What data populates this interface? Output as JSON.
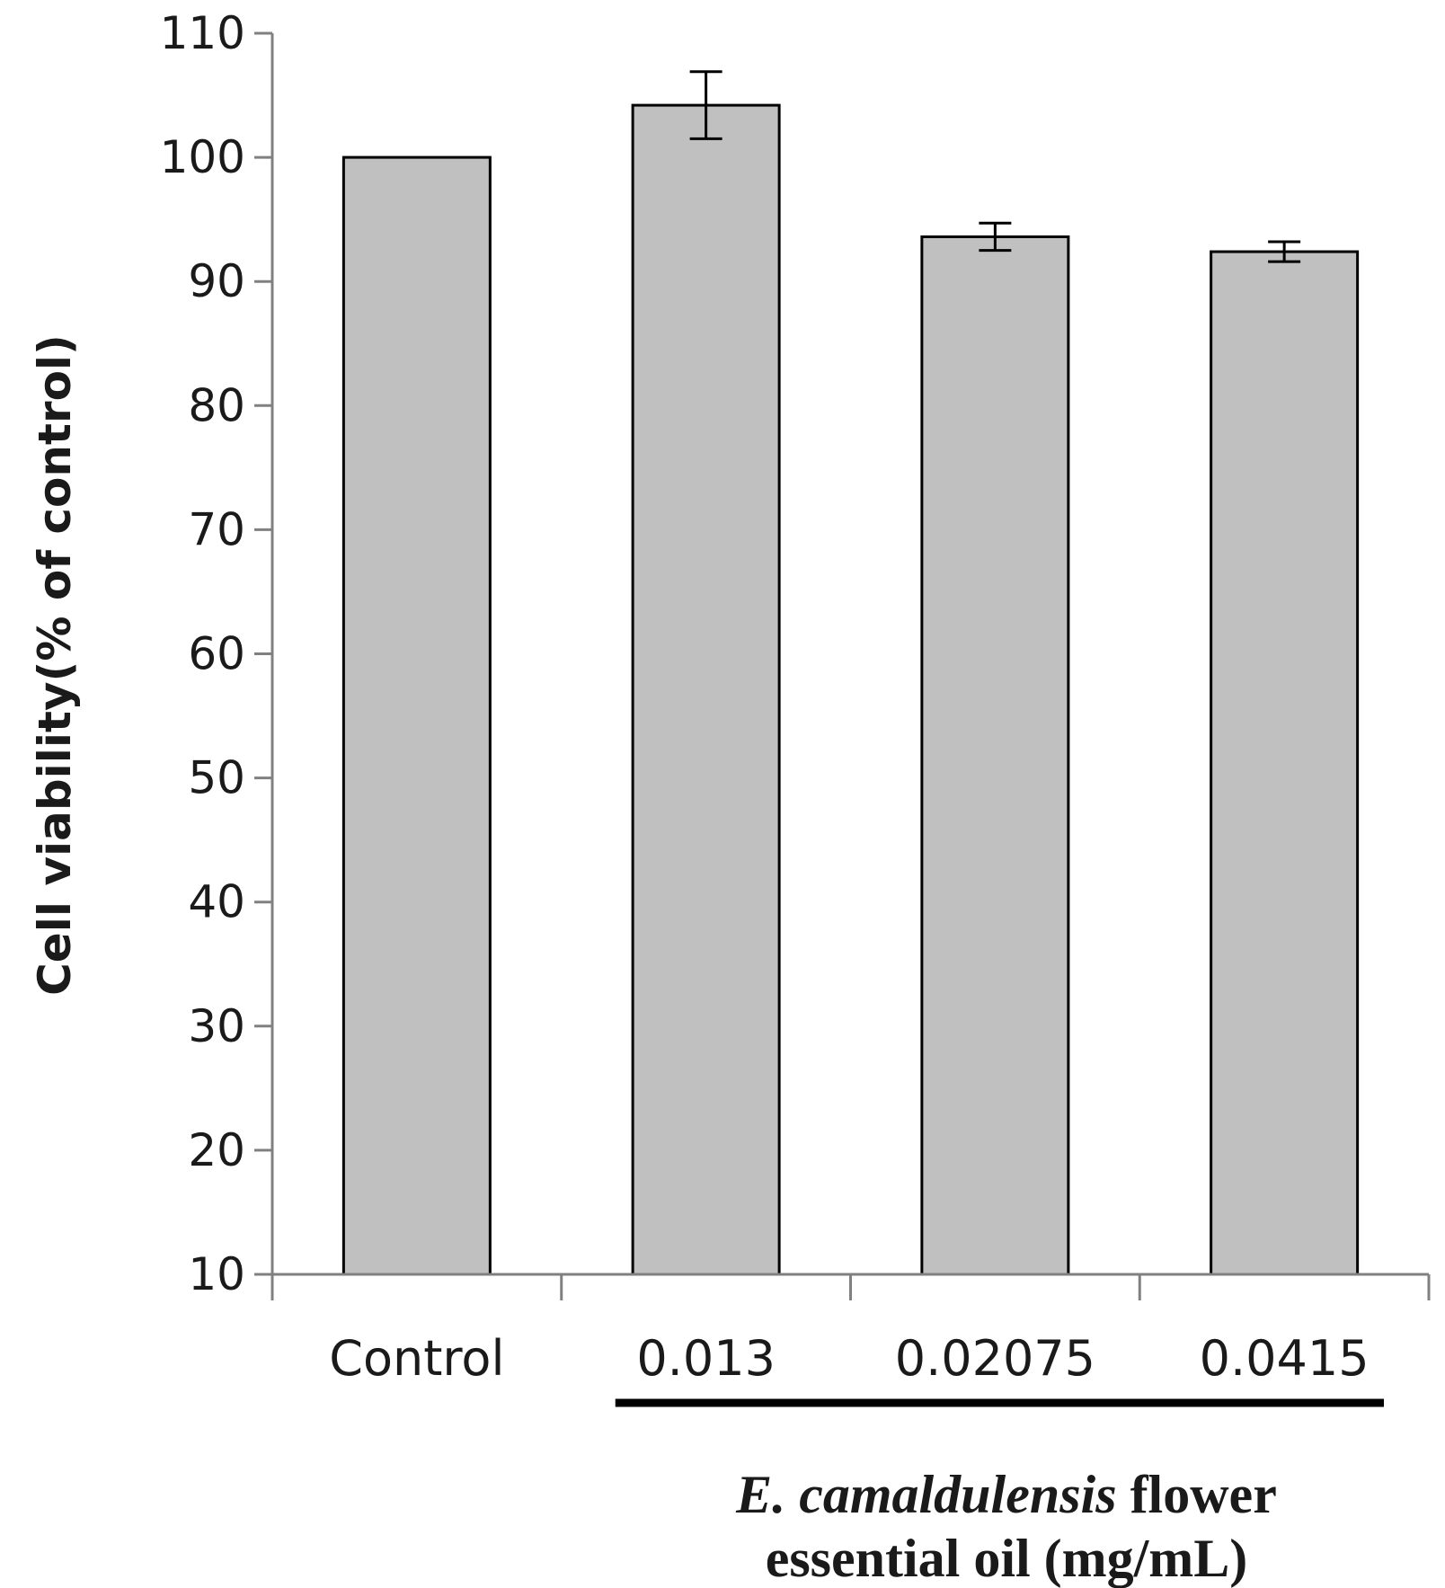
{
  "chart_data": {
    "type": "bar",
    "title": "",
    "categories": [
      "Control",
      "0.013",
      "0.02075",
      "0.0415"
    ],
    "values": [
      100,
      104.2,
      93.6,
      92.4
    ],
    "errors": [
      0,
      2.7,
      1.1,
      0.8
    ],
    "ylabel": "Cell viability(% of control)",
    "xlabel_species": "E. camaldulensis",
    "xlabel_line1_rest": " flower",
    "xlabel_line2": "essential oil (mg/mL)",
    "ylim": [
      10,
      110
    ],
    "yticks": [
      10,
      20,
      30,
      40,
      50,
      60,
      70,
      80,
      90,
      100,
      110
    ],
    "group_bracket": "under treatment categories",
    "bar_color": "#c0c0c0",
    "bar_edge_color": "#000000",
    "grid": false
  }
}
